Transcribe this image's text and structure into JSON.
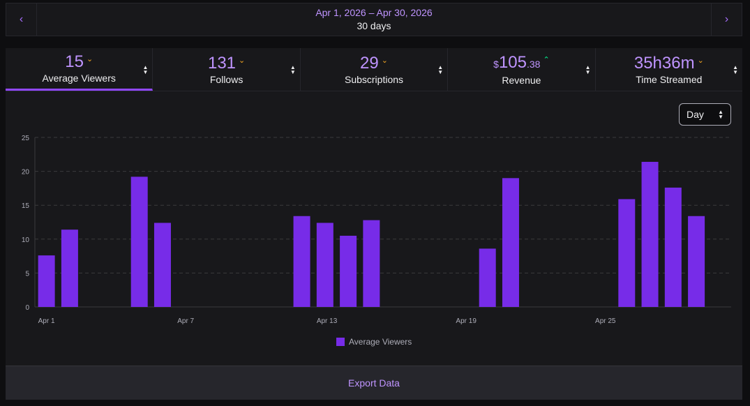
{
  "date_nav": {
    "range": "Apr 1, 2026 – Apr 30, 2026",
    "days": "30 days",
    "prev_icon": "chevron-left-icon",
    "next_icon": "chevron-right-icon"
  },
  "tabs": [
    {
      "value": "15",
      "label": "Average Viewers",
      "trend": "down"
    },
    {
      "value": "131",
      "label": "Follows",
      "trend": "down"
    },
    {
      "value": "29",
      "label": "Subscriptions",
      "trend": "down"
    },
    {
      "value_prefix": "$",
      "value": "105",
      "value_suffix": ".38",
      "label": "Revenue",
      "trend": "up"
    },
    {
      "value": "35h36m",
      "label": "Time Streamed",
      "trend": "down"
    }
  ],
  "interval": {
    "selected": "Day"
  },
  "export_label": "Export Data",
  "colors": {
    "accent": "#9147ff",
    "bar": "#772ce8",
    "trend_down": "#f5a623",
    "trend_up": "#00f593"
  },
  "chart_data": {
    "type": "bar",
    "title": "",
    "xlabel": "",
    "ylabel": "",
    "ylim": [
      0,
      25
    ],
    "yticks": [
      0,
      5,
      10,
      15,
      20,
      25
    ],
    "grid": true,
    "legend": "bottom-center",
    "x_tick_labels": [
      {
        "day": 1,
        "label": "Apr 1"
      },
      {
        "day": 7,
        "label": "Apr 7"
      },
      {
        "day": 13,
        "label": "Apr 13"
      },
      {
        "day": 19,
        "label": "Apr 19"
      },
      {
        "day": 25,
        "label": "Apr 25"
      }
    ],
    "series": [
      {
        "name": "Average Viewers",
        "points": [
          {
            "day": 1,
            "value": 7.6
          },
          {
            "day": 2,
            "value": 11.4
          },
          {
            "day": 5,
            "value": 19.2
          },
          {
            "day": 6,
            "value": 12.4
          },
          {
            "day": 12,
            "value": 13.4
          },
          {
            "day": 13,
            "value": 12.4
          },
          {
            "day": 14,
            "value": 10.5
          },
          {
            "day": 15,
            "value": 12.8
          },
          {
            "day": 20,
            "value": 8.6
          },
          {
            "day": 21,
            "value": 19.0
          },
          {
            "day": 26,
            "value": 15.9
          },
          {
            "day": 27,
            "value": 21.4
          },
          {
            "day": 28,
            "value": 17.6
          },
          {
            "day": 29,
            "value": 13.4
          }
        ]
      }
    ]
  }
}
